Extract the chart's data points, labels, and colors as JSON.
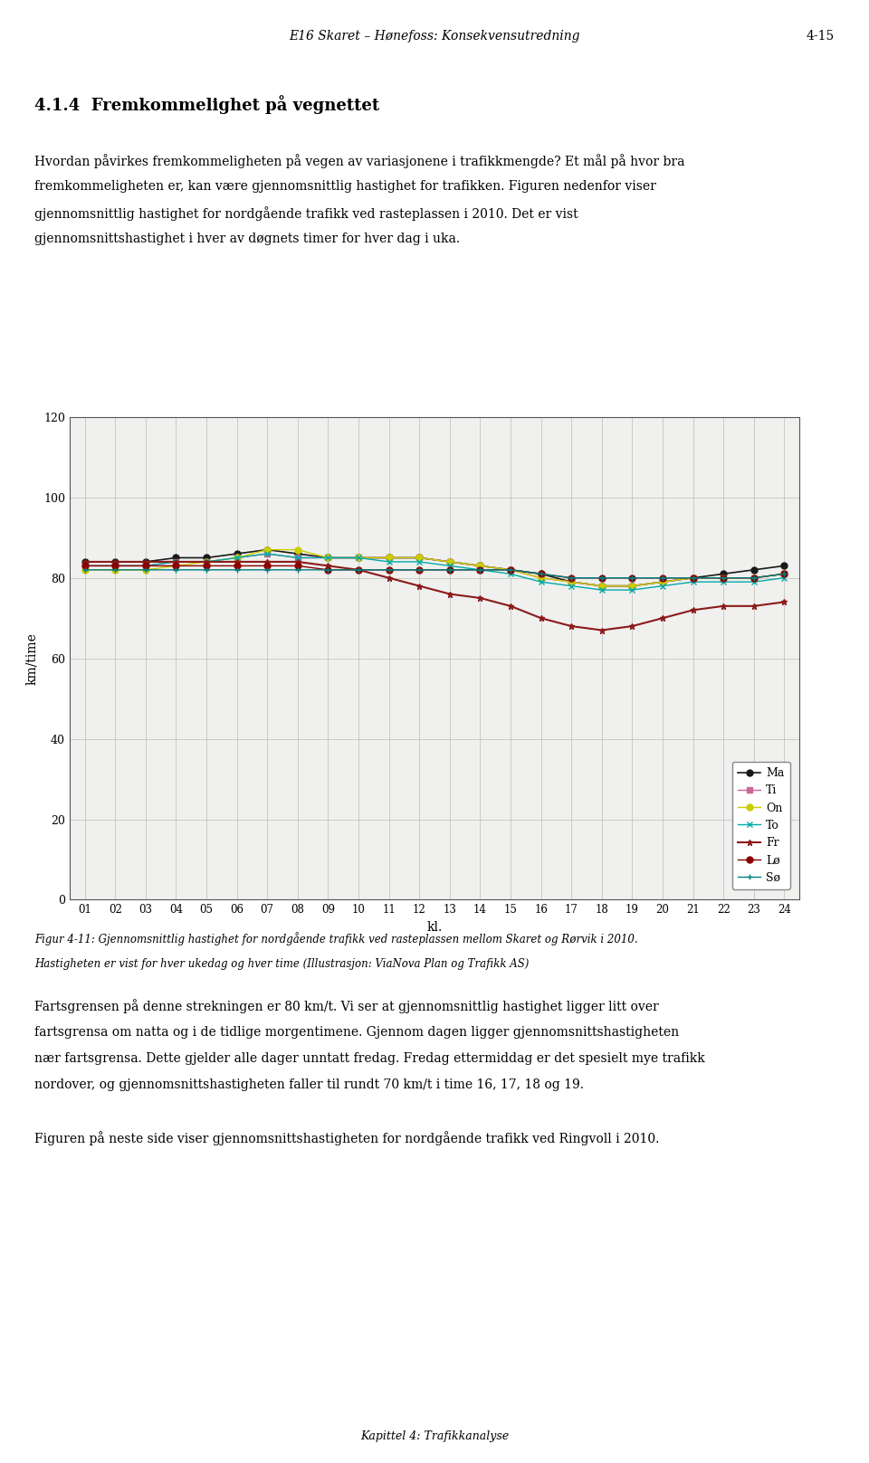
{
  "title_top": "E16 Skaret – Hønefoss: Konsekvensutredning",
  "title_top_right": "4-15",
  "section_title": "4.1.4  Fremkommelighet på vegnettet",
  "ylabel": "km/time",
  "xlabel": "kl.",
  "ylim": [
    0,
    120
  ],
  "yticks": [
    0,
    20,
    40,
    60,
    80,
    100,
    120
  ],
  "hours": [
    1,
    2,
    3,
    4,
    5,
    6,
    7,
    8,
    9,
    10,
    11,
    12,
    13,
    14,
    15,
    16,
    17,
    18,
    19,
    20,
    21,
    22,
    23,
    24
  ],
  "series": [
    {
      "name": "Ma",
      "color": "#1a1a1a",
      "marker": "o",
      "markercolor": "#1a1a1a",
      "lw": 1.2,
      "values": [
        84,
        84,
        84,
        85,
        85,
        86,
        87,
        86,
        85,
        85,
        85,
        85,
        84,
        83,
        82,
        81,
        79,
        78,
        78,
        79,
        80,
        81,
        82,
        83
      ]
    },
    {
      "name": "Ti",
      "color": "#cc6699",
      "marker": "s",
      "markercolor": "#cc6699",
      "lw": 1.0,
      "values": [
        83,
        83,
        83,
        84,
        84,
        85,
        86,
        85,
        85,
        85,
        85,
        85,
        84,
        83,
        82,
        80,
        79,
        78,
        78,
        79,
        80,
        80,
        80,
        81
      ]
    },
    {
      "name": "On",
      "color": "#cccc00",
      "marker": "o",
      "markercolor": "#cccc00",
      "lw": 1.0,
      "values": [
        82,
        82,
        82,
        83,
        84,
        85,
        87,
        87,
        85,
        85,
        85,
        85,
        84,
        83,
        82,
        80,
        79,
        78,
        78,
        79,
        80,
        80,
        80,
        81
      ]
    },
    {
      "name": "To",
      "color": "#00aaaa",
      "marker": "x",
      "markercolor": "#00aaaa",
      "lw": 1.0,
      "values": [
        83,
        83,
        83,
        84,
        84,
        85,
        86,
        85,
        85,
        85,
        84,
        84,
        83,
        82,
        81,
        79,
        78,
        77,
        77,
        78,
        79,
        79,
        79,
        80
      ]
    },
    {
      "name": "Fr",
      "color": "#8B1A1A",
      "marker": "*",
      "markercolor": "#8B1A1A",
      "lw": 1.5,
      "values": [
        84,
        84,
        84,
        84,
        84,
        84,
        84,
        84,
        83,
        82,
        80,
        78,
        76,
        75,
        73,
        70,
        68,
        67,
        68,
        70,
        72,
        73,
        73,
        74
      ]
    },
    {
      "name": "Lø",
      "color": "#8B0000",
      "marker": "o",
      "markercolor": "#8B0000",
      "lw": 1.0,
      "values": [
        83,
        83,
        83,
        83,
        83,
        83,
        83,
        83,
        82,
        82,
        82,
        82,
        82,
        82,
        82,
        81,
        80,
        80,
        80,
        80,
        80,
        80,
        80,
        81
      ]
    },
    {
      "name": "Sø",
      "color": "#008080",
      "marker": "+",
      "markercolor": "#008080",
      "lw": 1.0,
      "values": [
        82,
        82,
        82,
        82,
        82,
        82,
        82,
        82,
        82,
        82,
        82,
        82,
        82,
        82,
        82,
        81,
        80,
        80,
        80,
        80,
        80,
        80,
        80,
        81
      ]
    }
  ],
  "caption_line1": "Figur 4-11: Gjennomsnittlig hastighet for nordgående trafikk ved rasteplassen mellom Skaret og Rørvik i 2010.",
  "caption_line2": "Hastigheten er vist for hver ukedag og hver time (Illustrasjon: ViaNova Plan og Trafikk AS)",
  "footer": "Kapittel 4: Trafikkanalyse",
  "background_color": "#ffffff",
  "chart_bg": "#f0f0ee"
}
